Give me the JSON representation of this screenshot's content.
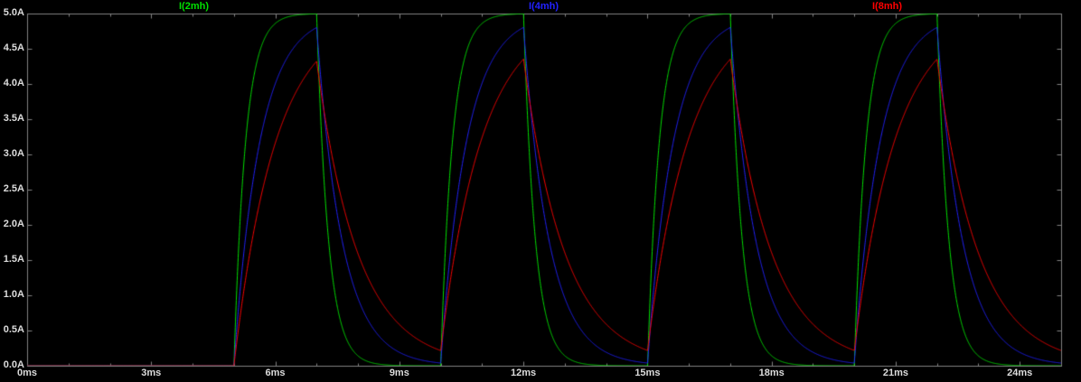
{
  "chart_data": {
    "type": "line",
    "background": "#000000",
    "grid": false,
    "legend_position": "top",
    "x_unit": "ms",
    "y_unit": "A",
    "xlim": [
      0,
      25
    ],
    "ylim": [
      0,
      5
    ],
    "x_ticks": {
      "values": [
        0,
        3,
        6,
        9,
        12,
        15,
        18,
        21,
        24
      ],
      "labels": [
        "0ms",
        "3ms",
        "6ms",
        "9ms",
        "12ms",
        "15ms",
        "18ms",
        "21ms",
        "24ms"
      ],
      "minor_step": 1
    },
    "y_ticks": {
      "values": [
        5,
        4.5,
        4,
        3.5,
        3,
        2.5,
        2,
        1.5,
        1,
        0.5,
        0
      ],
      "labels": [
        "5.0A",
        "4.5A",
        "4.0A",
        "3.5A",
        "3.0A",
        "2.5A",
        "2.0A",
        "1.5A",
        "1.0A",
        "0.5A",
        "0.0A"
      ]
    },
    "excitation": {
      "first_rise_ms": 5,
      "on_time_ms": 2,
      "off_time_ms": 3,
      "period_ms": 5,
      "target_amplitude_A": 5
    },
    "series": [
      {
        "name": "I(2mh)",
        "color": "#00e000",
        "tau_ms": 0.28,
        "peak_A": 5.0,
        "trough_A": 0.0
      },
      {
        "name": "I(4mh)",
        "color": "#2222ff",
        "tau_ms": 0.62,
        "peak_A": 4.8,
        "trough_A": 0.03
      },
      {
        "name": "I(8mh)",
        "color": "#ff0000",
        "tau_ms": 1.0,
        "peak_A": 4.35,
        "trough_A": 0.22
      }
    ]
  },
  "style": {
    "frame_color": "#828282",
    "tick_label_color": "#dcdcdc"
  }
}
